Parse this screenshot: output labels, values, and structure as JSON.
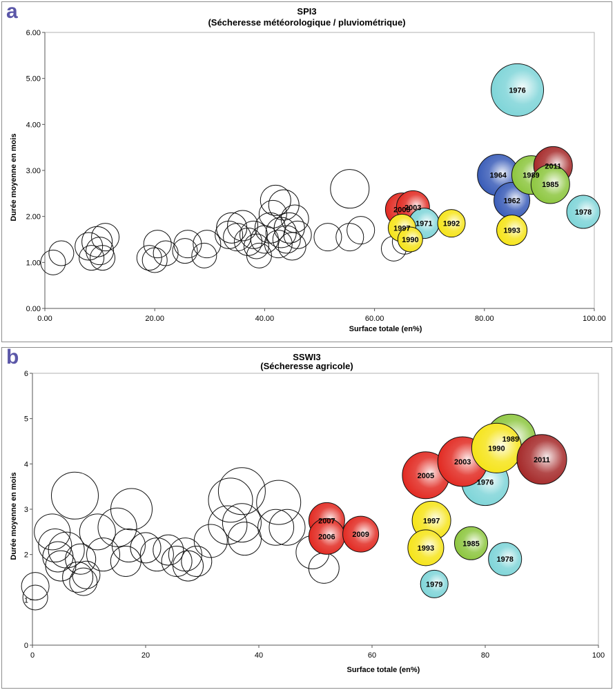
{
  "chart_data": [
    {
      "type": "scatter",
      "panel": "a",
      "title": "SPI3",
      "subtitle": "(Sécheresse météorologique / pluviométrique)",
      "xlabel": "Surface totale (en%)",
      "ylabel": "Durée moyenne en mois",
      "xlim": [
        0,
        100
      ],
      "ylim": [
        0,
        6
      ],
      "xticks": [
        "0.00",
        "20.00",
        "40.00",
        "60.00",
        "80.00",
        "100.00"
      ],
      "yticks": [
        "0.00",
        "1.00",
        "2.00",
        "3.00",
        "4.00",
        "5.00",
        "6.00"
      ],
      "points": [
        {
          "x": 1.5,
          "y": 1.0,
          "s": 18
        },
        {
          "x": 3.0,
          "y": 1.2,
          "s": 18
        },
        {
          "x": 8.0,
          "y": 1.35,
          "s": 20
        },
        {
          "x": 8.5,
          "y": 1.1,
          "s": 18
        },
        {
          "x": 9.5,
          "y": 1.45,
          "s": 22
        },
        {
          "x": 10.0,
          "y": 1.25,
          "s": 20
        },
        {
          "x": 10.5,
          "y": 1.1,
          "s": 18
        },
        {
          "x": 11.0,
          "y": 1.55,
          "s": 20
        },
        {
          "x": 19.0,
          "y": 1.1,
          "s": 18
        },
        {
          "x": 20.0,
          "y": 1.05,
          "s": 18
        },
        {
          "x": 20.5,
          "y": 1.4,
          "s": 20
        },
        {
          "x": 22.0,
          "y": 1.2,
          "s": 18
        },
        {
          "x": 25.5,
          "y": 1.25,
          "s": 18
        },
        {
          "x": 26.0,
          "y": 1.4,
          "s": 20
        },
        {
          "x": 29.0,
          "y": 1.15,
          "s": 18
        },
        {
          "x": 29.5,
          "y": 1.4,
          "s": 20
        },
        {
          "x": 33.5,
          "y": 1.6,
          "s": 20
        },
        {
          "x": 34.0,
          "y": 1.75,
          "s": 22
        },
        {
          "x": 35.0,
          "y": 1.55,
          "s": 20
        },
        {
          "x": 36.0,
          "y": 1.8,
          "s": 22
        },
        {
          "x": 37.0,
          "y": 1.45,
          "s": 20
        },
        {
          "x": 38.0,
          "y": 1.6,
          "s": 20
        },
        {
          "x": 38.5,
          "y": 1.35,
          "s": 18
        },
        {
          "x": 39.0,
          "y": 1.15,
          "s": 18
        },
        {
          "x": 40.0,
          "y": 1.5,
          "s": 20
        },
        {
          "x": 41.0,
          "y": 1.75,
          "s": 22
        },
        {
          "x": 41.5,
          "y": 2.05,
          "s": 20
        },
        {
          "x": 42.0,
          "y": 2.35,
          "s": 22
        },
        {
          "x": 42.5,
          "y": 1.4,
          "s": 20
        },
        {
          "x": 43.0,
          "y": 1.65,
          "s": 22
        },
        {
          "x": 43.5,
          "y": 2.25,
          "s": 22
        },
        {
          "x": 44.0,
          "y": 1.5,
          "s": 20
        },
        {
          "x": 44.5,
          "y": 1.75,
          "s": 22
        },
        {
          "x": 45.0,
          "y": 1.35,
          "s": 20
        },
        {
          "x": 45.5,
          "y": 1.95,
          "s": 20
        },
        {
          "x": 46.0,
          "y": 1.6,
          "s": 20
        },
        {
          "x": 51.5,
          "y": 1.55,
          "s": 20
        },
        {
          "x": 55.5,
          "y": 2.6,
          "s": 28
        },
        {
          "x": 55.5,
          "y": 1.55,
          "s": 20
        },
        {
          "x": 57.5,
          "y": 1.7,
          "s": 20
        },
        {
          "x": 63.5,
          "y": 1.3,
          "s": 18
        },
        {
          "x": 65.5,
          "y": 1.45,
          "s": 18
        },
        {
          "x": 65.0,
          "y": 2.15,
          "s": 24,
          "label": "2005",
          "color": "#e22a22"
        },
        {
          "x": 67.0,
          "y": 2.2,
          "s": 24,
          "label": "2003",
          "color": "#e22a22"
        },
        {
          "x": 69.0,
          "y": 1.85,
          "s": 22,
          "label": "1971",
          "color": "#7fd5d8"
        },
        {
          "x": 65.0,
          "y": 1.75,
          "s": 20,
          "label": "1997",
          "color": "#f6e419"
        },
        {
          "x": 66.5,
          "y": 1.5,
          "s": 18,
          "label": "1990",
          "color": "#f6e419"
        },
        {
          "x": 74.0,
          "y": 1.85,
          "s": 20,
          "label": "1992",
          "color": "#f6e419"
        },
        {
          "x": 86.0,
          "y": 4.75,
          "s": 38,
          "label": "1976",
          "color": "#7fd5d8"
        },
        {
          "x": 82.5,
          "y": 2.9,
          "s": 30,
          "label": "1964",
          "color": "#3a5db8"
        },
        {
          "x": 85.0,
          "y": 2.35,
          "s": 26,
          "label": "1962",
          "color": "#3a5db8"
        },
        {
          "x": 88.5,
          "y": 2.9,
          "s": 28,
          "label": "1989",
          "color": "#8dc63f"
        },
        {
          "x": 92.5,
          "y": 3.1,
          "s": 28,
          "label": "2011",
          "color": "#a52a2a"
        },
        {
          "x": 92.0,
          "y": 2.7,
          "s": 28,
          "label": "1985",
          "color": "#8dc63f"
        },
        {
          "x": 85.0,
          "y": 1.7,
          "s": 22,
          "label": "1993",
          "color": "#f6e419"
        },
        {
          "x": 98.0,
          "y": 2.1,
          "s": 24,
          "label": "1978",
          "color": "#7fd5d8"
        }
      ]
    },
    {
      "type": "scatter",
      "panel": "b",
      "title": "SSWI3",
      "subtitle": "(Sécheresse agricole)",
      "xlabel": "Surface totale (en%)",
      "ylabel": "Durée moyenne en mois",
      "xlim": [
        0,
        100
      ],
      "ylim": [
        0,
        6
      ],
      "xticks": [
        "0",
        "20",
        "40",
        "60",
        "80",
        "100"
      ],
      "yticks": [
        "0",
        "1",
        "2",
        "3",
        "4",
        "5",
        "6"
      ],
      "points": [
        {
          "x": 0.5,
          "y": 1.3,
          "s": 20
        },
        {
          "x": 0.5,
          "y": 1.05,
          "s": 18
        },
        {
          "x": 3.5,
          "y": 2.5,
          "s": 26
        },
        {
          "x": 4.0,
          "y": 2.2,
          "s": 24
        },
        {
          "x": 4.5,
          "y": 1.95,
          "s": 22
        },
        {
          "x": 5.0,
          "y": 1.75,
          "s": 22
        },
        {
          "x": 6.0,
          "y": 2.1,
          "s": 26
        },
        {
          "x": 7.5,
          "y": 3.3,
          "s": 34
        },
        {
          "x": 8.0,
          "y": 1.5,
          "s": 22
        },
        {
          "x": 8.5,
          "y": 1.9,
          "s": 22
        },
        {
          "x": 9.0,
          "y": 1.4,
          "s": 20
        },
        {
          "x": 9.5,
          "y": 1.55,
          "s": 20
        },
        {
          "x": 11.5,
          "y": 2.5,
          "s": 26
        },
        {
          "x": 12.5,
          "y": 2.0,
          "s": 24
        },
        {
          "x": 15.0,
          "y": 2.6,
          "s": 28
        },
        {
          "x": 16.5,
          "y": 1.85,
          "s": 22
        },
        {
          "x": 17.5,
          "y": 3.0,
          "s": 30
        },
        {
          "x": 17.0,
          "y": 2.2,
          "s": 24
        },
        {
          "x": 20.0,
          "y": 2.15,
          "s": 22
        },
        {
          "x": 22.0,
          "y": 2.0,
          "s": 24
        },
        {
          "x": 24.0,
          "y": 2.1,
          "s": 22
        },
        {
          "x": 25.5,
          "y": 1.85,
          "s": 22
        },
        {
          "x": 27.0,
          "y": 2.0,
          "s": 24
        },
        {
          "x": 27.5,
          "y": 1.75,
          "s": 22
        },
        {
          "x": 29.0,
          "y": 1.85,
          "s": 22
        },
        {
          "x": 31.5,
          "y": 2.3,
          "s": 24
        },
        {
          "x": 34.5,
          "y": 2.65,
          "s": 28
        },
        {
          "x": 35.0,
          "y": 3.2,
          "s": 32
        },
        {
          "x": 37.0,
          "y": 3.4,
          "s": 34
        },
        {
          "x": 37.5,
          "y": 2.35,
          "s": 24
        },
        {
          "x": 37.0,
          "y": 2.7,
          "s": 28
        },
        {
          "x": 43.5,
          "y": 3.15,
          "s": 32
        },
        {
          "x": 43.0,
          "y": 2.6,
          "s": 26
        },
        {
          "x": 45.0,
          "y": 2.6,
          "s": 26
        },
        {
          "x": 49.5,
          "y": 2.05,
          "s": 24
        },
        {
          "x": 51.5,
          "y": 1.7,
          "s": 22
        },
        {
          "x": 52.0,
          "y": 2.75,
          "s": 26,
          "label": "2007",
          "color": "#e22a22"
        },
        {
          "x": 52.0,
          "y": 2.4,
          "s": 26,
          "label": "2006",
          "color": "#e22a22"
        },
        {
          "x": 58.0,
          "y": 2.45,
          "s": 26,
          "label": "2009",
          "color": "#e22a22"
        },
        {
          "x": 70.5,
          "y": 2.75,
          "s": 28,
          "label": "1997",
          "color": "#f6e419"
        },
        {
          "x": 69.5,
          "y": 2.15,
          "s": 26,
          "label": "1993",
          "color": "#f6e419"
        },
        {
          "x": 71.0,
          "y": 1.35,
          "s": 20,
          "label": "1979",
          "color": "#7fd5d8"
        },
        {
          "x": 77.5,
          "y": 2.25,
          "s": 24,
          "label": "1985",
          "color": "#8dc63f"
        },
        {
          "x": 83.5,
          "y": 1.9,
          "s": 24,
          "label": "1978",
          "color": "#7fd5d8"
        },
        {
          "x": 80.0,
          "y": 3.6,
          "s": 34,
          "label": "1976",
          "color": "#7fd5d8"
        },
        {
          "x": 69.5,
          "y": 3.75,
          "s": 34,
          "label": "2005",
          "color": "#e22a22"
        },
        {
          "x": 76.0,
          "y": 4.05,
          "s": 36,
          "label": "2003",
          "color": "#e22a22"
        },
        {
          "x": 84.5,
          "y": 4.55,
          "s": 36,
          "label": "1989",
          "color": "#8dc63f"
        },
        {
          "x": 82.0,
          "y": 4.35,
          "s": 36,
          "label": "1990",
          "color": "#f6e419"
        },
        {
          "x": 90.0,
          "y": 4.1,
          "s": 36,
          "label": "2011",
          "color": "#a52a2a"
        }
      ]
    }
  ],
  "panels": {
    "a": {
      "letter": "a"
    },
    "b": {
      "letter": "b"
    }
  }
}
